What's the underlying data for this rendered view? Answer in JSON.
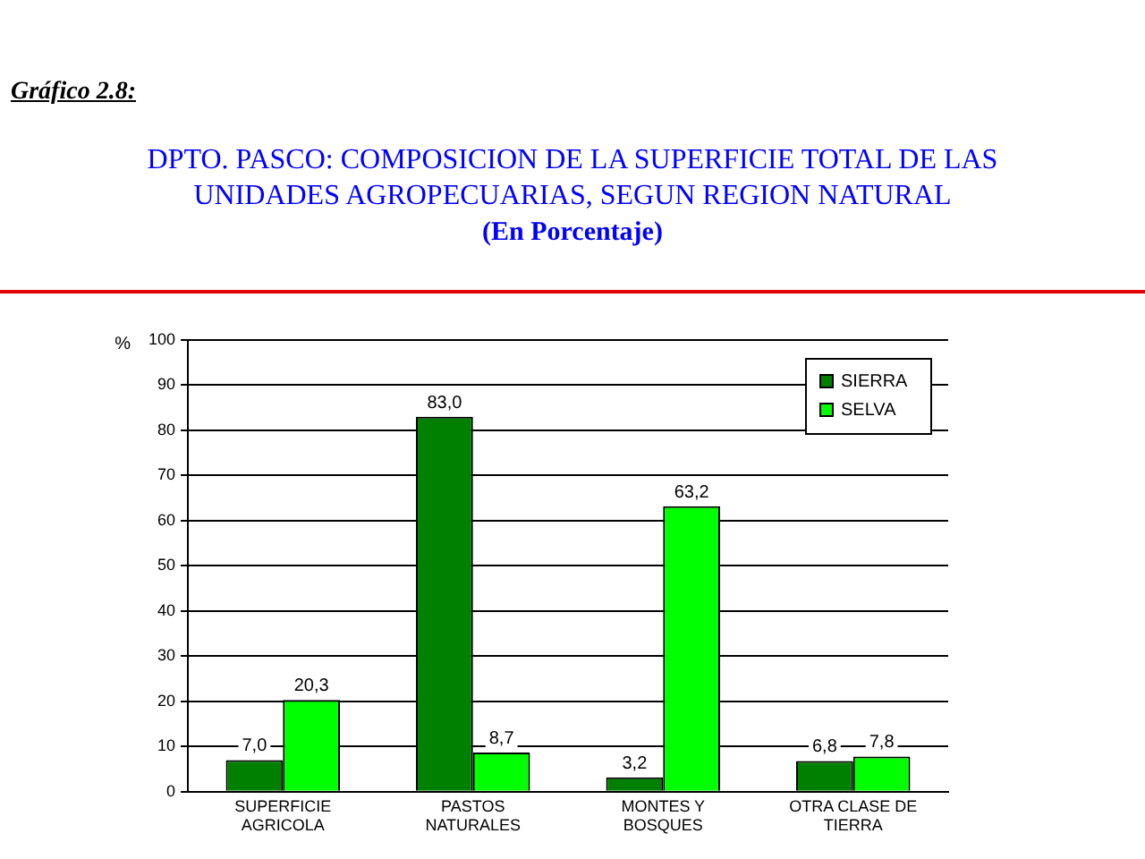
{
  "chart_data": {
    "type": "bar",
    "title": "DPTO. PASCO: COMPOSICION DE LA SUPERFICIE TOTAL DE LAS UNIDADES AGROPECUARIAS, SEGUN REGION NATURAL",
    "subtitle": "(En Porcentaje)",
    "annotations": [
      "Gráfico 2.8:"
    ],
    "ylabel": "%",
    "categories": [
      "SUPERFICIE AGRICOLA",
      "PASTOS NATURALES",
      "MONTES Y BOSQUES",
      "OTRA CLASE DE TIERRA"
    ],
    "series": [
      {
        "name": "SIERRA",
        "color": "#008000",
        "values": [
          7.0,
          83.0,
          3.2,
          6.8
        ],
        "value_labels": [
          "7,0",
          "83,0",
          "3,2",
          "6,8"
        ]
      },
      {
        "name": "SELVA",
        "color": "#00ff00",
        "values": [
          20.3,
          8.7,
          63.2,
          7.8
        ],
        "value_labels": [
          "20,3",
          "8,7",
          "63,2",
          "7,8"
        ]
      }
    ],
    "ylim": [
      0,
      100
    ],
    "yticks": [
      0,
      10,
      20,
      30,
      40,
      50,
      60,
      70,
      80,
      90,
      100
    ],
    "grid": "y",
    "legend": "top right"
  }
}
